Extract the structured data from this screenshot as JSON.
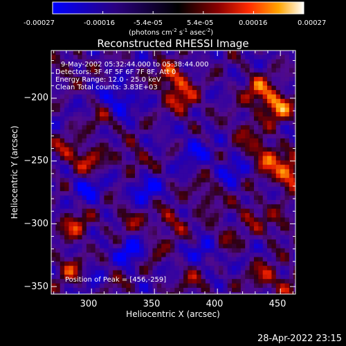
{
  "colorbar": {
    "tick_labels": [
      "-0.00027",
      "-0.00016",
      "-5.4e-05",
      "5.4e-05",
      "0.00016",
      "0.00027"
    ],
    "unit_main": "(photons cm",
    "unit_exp1": "-2",
    "unit_mid": " s",
    "unit_exp2": "-1",
    "unit_end": " asec",
    "unit_exp3": "-2",
    "unit_close": ")",
    "colors": [
      "#0000ff",
      "#2a0080",
      "#000000",
      "#8b0000",
      "#ff2a00",
      "#ffa500",
      "#ffffff"
    ]
  },
  "annotations": {
    "time": "9-May-2002 05:32:44.000 to 05:38:44.000",
    "detectors": "Detectors: 3F 4F 5F 6F 7F 8F, Att 0",
    "energy": "Energy Range: 12.0 - 25.0 keV",
    "clean": "Clean     Total counts: 3.83E+03",
    "peak": "Position of Peak = [456,-259]"
  },
  "footer_timestamp": "28-Apr-2022 23:15",
  "chart_data": {
    "type": "heatmap",
    "title": "Reconstructed RHESSI Image",
    "xlabel": "Heliocentric X (arcsec)",
    "ylabel": "Heliocentric Y (arcsec)",
    "xlim": [
      268,
      462
    ],
    "ylim": [
      -356,
      -162
    ],
    "x_ticks": [
      300,
      350,
      400,
      450
    ],
    "y_ticks": [
      -200,
      -250,
      -300,
      -350
    ],
    "x_tick_labels": [
      "300",
      "350",
      "400",
      "450"
    ],
    "y_tick_labels": [
      "−200",
      "−250",
      "−300",
      "−350"
    ],
    "value_range": [
      -0.00027,
      0.00027
    ],
    "peak_position": [
      456,
      -259
    ],
    "hot_spots": [
      {
        "x": 362,
        "y": -182,
        "v": 0.00022
      },
      {
        "x": 372,
        "y": -200,
        "v": 0.00018
      },
      {
        "x": 446,
        "y": -205,
        "v": 0.00026
      },
      {
        "x": 431,
        "y": -192,
        "v": 0.0002
      },
      {
        "x": 456,
        "y": -259,
        "v": 0.00027
      },
      {
        "x": 437,
        "y": -245,
        "v": 0.00022
      },
      {
        "x": 420,
        "y": -225,
        "v": 0.00012
      },
      {
        "x": 296,
        "y": -248,
        "v": 0.00017
      },
      {
        "x": 278,
        "y": -240,
        "v": 0.00012
      },
      {
        "x": 333,
        "y": -248,
        "v": 0.00012
      },
      {
        "x": 308,
        "y": -215,
        "v": 0.0001
      },
      {
        "x": 279,
        "y": -173,
        "v": 8e-05
      },
      {
        "x": 285,
        "y": -300,
        "v": 0.00017
      },
      {
        "x": 328,
        "y": -295,
        "v": 0.00012
      },
      {
        "x": 362,
        "y": -297,
        "v": 0.00014
      },
      {
        "x": 390,
        "y": -275,
        "v": 0.00012
      },
      {
        "x": 345,
        "y": -320,
        "v": 0.0001
      },
      {
        "x": 402,
        "y": -310,
        "v": 0.00012
      },
      {
        "x": 425,
        "y": -290,
        "v": 0.00012
      },
      {
        "x": 447,
        "y": -300,
        "v": 0.0001
      },
      {
        "x": 282,
        "y": -335,
        "v": 0.00016
      },
      {
        "x": 435,
        "y": -340,
        "v": 0.00014
      },
      {
        "x": 380,
        "y": -345,
        "v": 0.0001
      },
      {
        "x": 455,
        "y": -348,
        "v": 0.00012
      },
      {
        "x": 313,
        "y": -342,
        "v": 8e-05
      }
    ],
    "cold_spots": [
      {
        "x": 320,
        "y": -200,
        "v": -0.00018
      },
      {
        "x": 295,
        "y": -270,
        "v": -0.00014
      },
      {
        "x": 340,
        "y": -270,
        "v": -0.00016
      },
      {
        "x": 380,
        "y": -240,
        "v": -0.00012
      },
      {
        "x": 330,
        "y": -320,
        "v": -0.0002
      },
      {
        "x": 390,
        "y": -320,
        "v": -0.00014
      },
      {
        "x": 300,
        "y": -340,
        "v": -0.0001
      },
      {
        "x": 410,
        "y": -255,
        "v": -0.00012
      }
    ]
  }
}
